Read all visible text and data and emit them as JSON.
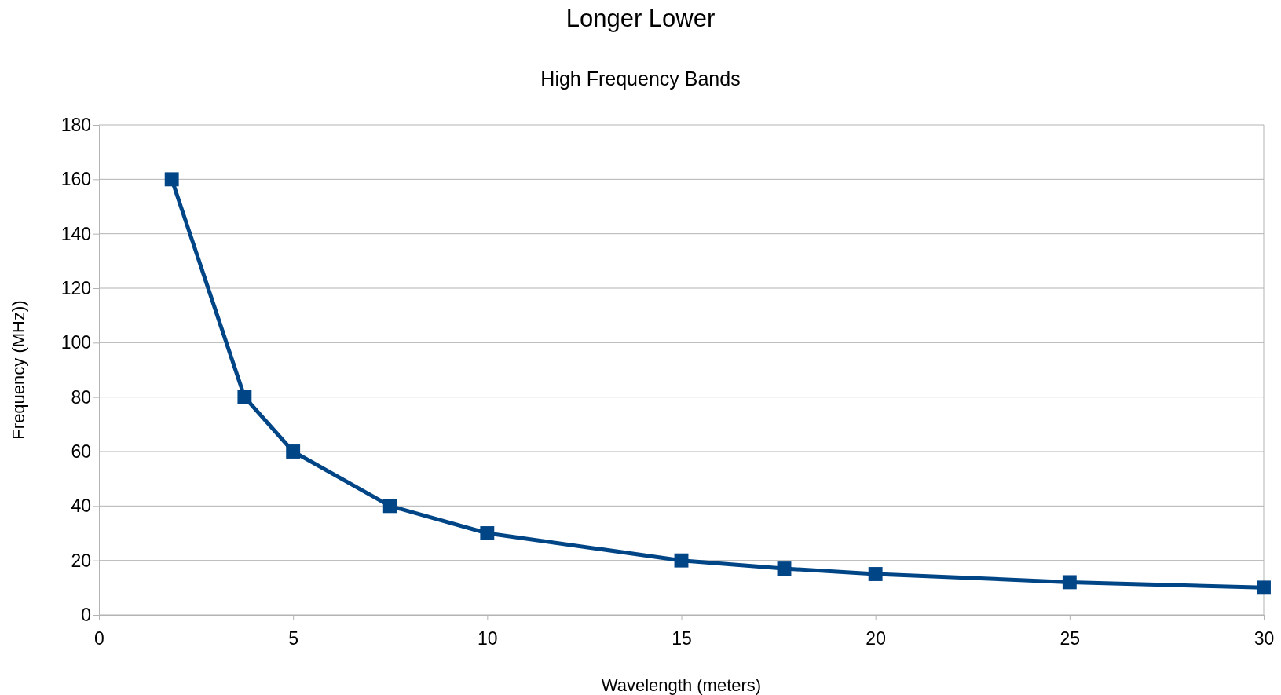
{
  "chart_data": {
    "type": "line",
    "title": "Longer Lower",
    "subtitle": "High Frequency Bands",
    "xlabel": "Wavelength (meters)",
    "ylabel": "Frequency (MHz))",
    "x": [
      1.875,
      3.75,
      5,
      7.5,
      10,
      15,
      17.65,
      20,
      25,
      30
    ],
    "series": [
      {
        "color": "#004586",
        "values": [
          160,
          80,
          60,
          40,
          30,
          20,
          17,
          15,
          12,
          10
        ]
      }
    ],
    "xlim": [
      0,
      30
    ],
    "xticks": [
      0,
      5,
      10,
      15,
      20,
      25,
      30
    ],
    "ylim": [
      0,
      180
    ],
    "yticks": [
      0,
      20,
      40,
      60,
      80,
      100,
      120,
      140,
      160,
      180
    ],
    "grid": "y",
    "marker": "square",
    "line_style": "solid"
  }
}
